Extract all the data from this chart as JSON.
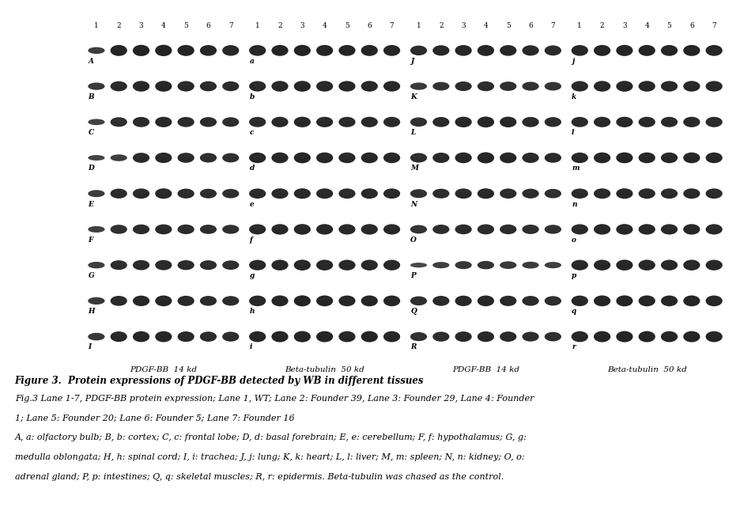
{
  "fig_width": 9.37,
  "fig_height": 6.46,
  "dpi": 100,
  "bg_color": "#ffffff",
  "panel_bg": "#d8d8d8",
  "band_color": "#111111",
  "row_labels_col0": [
    "A",
    "B",
    "C",
    "D",
    "E",
    "F",
    "G",
    "H",
    "I"
  ],
  "row_labels_col1": [
    "a",
    "b",
    "c",
    "d",
    "e",
    "f",
    "g",
    "h",
    "i"
  ],
  "row_labels_col2": [
    "J",
    "K",
    "L",
    "M",
    "N",
    "O",
    "P",
    "Q",
    "R"
  ],
  "row_labels_col3": [
    "j",
    "k",
    "l",
    "m",
    "n",
    "o",
    "p",
    "q",
    "r"
  ],
  "col_labels": [
    "PDGF-BB  14 kd",
    "Beta-tubulin  50 kd",
    "PDGF-BB  14 kd",
    "Beta-tubulin  50 kd"
  ],
  "figure_title": "Figure 3.  Protein expressions of PDGF-BB detected by WB in different tissues",
  "caption_line1": "Fig.3 Lane 1-7, PDGF-BB protein expression; Lane 1, WT; Lane 2: Founder 39, Lane 3: Founder 29, Lane 4: Founder",
  "caption_line2": "1; Lane 5: Founder 20; Lane 6: Founder 5; Lane 7: Founder 16",
  "caption_line3": "A, a: olfactory bulb; B, b: cortex; C, c: frontal lobe; D, d: basal forebrain; E, e: cerebellum; F, f: hypothalamus; G, g:",
  "caption_line4": "medulla oblongata; H, h: spinal cord; I, i: trachea; J, j: lung; K, k: heart; L, l: liver; M, m: spleen; N, n: kidney; O, o:",
  "caption_line5": "adrenal gland; P, p: intestines; Q, q: skeletal muscles; R, r: epidermis. Beta-tubulin was chased as the control.",
  "pdgf_patterns": [
    [
      0.55,
      0.9,
      0.92,
      0.93,
      0.9,
      0.88,
      0.87
    ],
    [
      0.6,
      0.82,
      0.87,
      0.88,
      0.85,
      0.82,
      0.8
    ],
    [
      0.5,
      0.78,
      0.83,
      0.85,
      0.82,
      0.8,
      0.78
    ],
    [
      0.45,
      0.55,
      0.82,
      0.85,
      0.82,
      0.78,
      0.76
    ],
    [
      0.58,
      0.8,
      0.83,
      0.85,
      0.8,
      0.78,
      0.76
    ],
    [
      0.52,
      0.75,
      0.8,
      0.82,
      0.79,
      0.76,
      0.74
    ],
    [
      0.54,
      0.78,
      0.82,
      0.83,
      0.8,
      0.78,
      0.76
    ],
    [
      0.6,
      0.82,
      0.86,
      0.88,
      0.84,
      0.81,
      0.79
    ],
    [
      0.62,
      0.85,
      0.88,
      0.89,
      0.85,
      0.82,
      0.8
    ]
  ],
  "beta_patterns": [
    [
      0.88,
      0.9,
      0.91,
      0.9,
      0.89,
      0.9,
      0.89
    ],
    [
      0.85,
      0.87,
      0.88,
      0.87,
      0.86,
      0.87,
      0.86
    ],
    [
      0.83,
      0.85,
      0.86,
      0.85,
      0.84,
      0.85,
      0.84
    ],
    [
      0.86,
      0.88,
      0.89,
      0.88,
      0.87,
      0.88,
      0.87
    ],
    [
      0.82,
      0.84,
      0.85,
      0.84,
      0.83,
      0.84,
      0.83
    ],
    [
      0.84,
      0.86,
      0.87,
      0.86,
      0.85,
      0.86,
      0.85
    ],
    [
      0.85,
      0.87,
      0.88,
      0.87,
      0.86,
      0.87,
      0.86
    ],
    [
      0.87,
      0.89,
      0.9,
      0.89,
      0.88,
      0.89,
      0.88
    ],
    [
      0.88,
      0.9,
      0.91,
      0.9,
      0.89,
      0.9,
      0.89
    ]
  ],
  "pdgf_patterns2": [
    [
      0.8,
      0.85,
      0.88,
      0.9,
      0.88,
      0.85,
      0.83
    ],
    [
      0.6,
      0.7,
      0.78,
      0.8,
      0.76,
      0.72,
      0.7
    ],
    [
      0.75,
      0.82,
      0.87,
      0.89,
      0.87,
      0.83,
      0.8
    ],
    [
      0.78,
      0.84,
      0.88,
      0.91,
      0.88,
      0.84,
      0.81
    ],
    [
      0.72,
      0.79,
      0.83,
      0.85,
      0.82,
      0.79,
      0.76
    ],
    [
      0.7,
      0.77,
      0.81,
      0.83,
      0.8,
      0.77,
      0.74
    ],
    [
      0.4,
      0.52,
      0.65,
      0.68,
      0.62,
      0.56,
      0.52
    ],
    [
      0.75,
      0.82,
      0.86,
      0.88,
      0.85,
      0.81,
      0.78
    ],
    [
      0.73,
      0.8,
      0.84,
      0.86,
      0.83,
      0.79,
      0.76
    ]
  ]
}
